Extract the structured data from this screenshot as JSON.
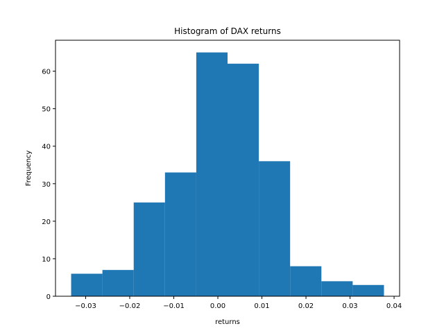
{
  "chart_data": {
    "type": "bar",
    "title": "Histogram of DAX returns",
    "xlabel": "returns",
    "ylabel": "Frequency",
    "bin_edges": [
      -0.0333,
      -0.0262,
      -0.0191,
      -0.012,
      -0.0049,
      0.0022,
      0.0093,
      0.0164,
      0.0235,
      0.0306,
      0.0377
    ],
    "values": [
      6,
      7,
      25,
      33,
      65,
      62,
      36,
      8,
      4,
      3
    ],
    "xlim": [
      -0.03685,
      0.04125
    ],
    "ylim": [
      0,
      68.25
    ],
    "xticks": [
      -0.03,
      -0.02,
      -0.01,
      0.0,
      0.01,
      0.02,
      0.03,
      0.04
    ],
    "xtick_labels": [
      "−0.03",
      "−0.02",
      "−0.01",
      "0.00",
      "0.01",
      "0.02",
      "0.03",
      "0.04"
    ],
    "yticks": [
      0,
      10,
      20,
      30,
      40,
      50,
      60
    ],
    "ytick_labels": [
      "0",
      "10",
      "20",
      "30",
      "40",
      "50",
      "60"
    ],
    "bar_color": "#1f77b4",
    "grid": false,
    "legend": "none"
  }
}
